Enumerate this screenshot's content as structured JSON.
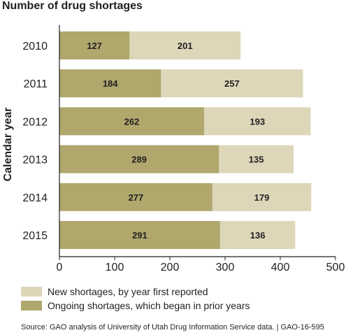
{
  "title": "Number of drug shortages",
  "colors": {
    "ongoing": "#afa76c",
    "new": "#ddd6b9",
    "axis": "#231f20",
    "grid": "#e6e6e6"
  },
  "chart_data": {
    "type": "bar",
    "orientation": "horizontal",
    "stacked": true,
    "categories": [
      "2010",
      "2011",
      "2012",
      "2013",
      "2014",
      "2015"
    ],
    "series": [
      {
        "name": "Ongoing shortages, which began in prior years",
        "key": "ongoing",
        "values": [
          127,
          184,
          262,
          289,
          277,
          291
        ]
      },
      {
        "name": "New shortages, by year first reported",
        "key": "new",
        "values": [
          201,
          257,
          193,
          135,
          179,
          136
        ]
      }
    ],
    "ylabel": "Calendar year",
    "xlabel": "",
    "xlim": [
      0,
      500
    ],
    "xticks": [
      "0",
      "100",
      "200",
      "300",
      "400",
      "500"
    ],
    "grid": false,
    "legend_position": "bottom"
  },
  "legend": {
    "new_label": "New shortages, by year first reported",
    "ongoing_label": "Ongoing shortages, which began in prior years"
  },
  "source": "Source: GAO analysis of University of Utah Drug Information Service data. | GAO-16-595"
}
